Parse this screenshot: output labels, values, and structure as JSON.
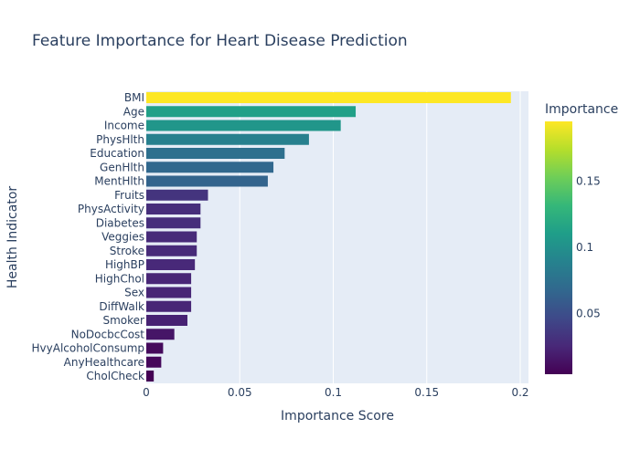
{
  "chart_data": {
    "type": "bar",
    "orientation": "horizontal",
    "title": "Feature Importance for Heart Disease Prediction",
    "xlabel": "Importance Score",
    "ylabel": "Health Indicator",
    "xlim": [
      0,
      0.2
    ],
    "x_ticks": [
      "0",
      "0.05",
      "0.1",
      "0.15",
      "0.2"
    ],
    "grid": "vertical gridlines",
    "colorscale": "viridis",
    "colorbar": {
      "title": "Importance",
      "range": [
        0.004,
        0.195
      ],
      "ticks": [
        {
          "value": 0.05,
          "label": "0.05"
        },
        {
          "value": 0.1,
          "label": "0.1"
        },
        {
          "value": 0.15,
          "label": "0.15"
        }
      ]
    },
    "categories": [
      "BMI",
      "Age",
      "Income",
      "PhysHlth",
      "Education",
      "GenHlth",
      "MentHlth",
      "Fruits",
      "PhysActivity",
      "Diabetes",
      "Veggies",
      "Stroke",
      "HighBP",
      "HighChol",
      "Sex",
      "DiffWalk",
      "Smoker",
      "NoDocbcCost",
      "HvyAlcoholConsump",
      "AnyHealthcare",
      "CholCheck"
    ],
    "values": [
      0.195,
      0.112,
      0.104,
      0.087,
      0.074,
      0.068,
      0.065,
      0.033,
      0.029,
      0.029,
      0.027,
      0.027,
      0.026,
      0.024,
      0.024,
      0.024,
      0.022,
      0.015,
      0.009,
      0.008,
      0.004
    ]
  }
}
